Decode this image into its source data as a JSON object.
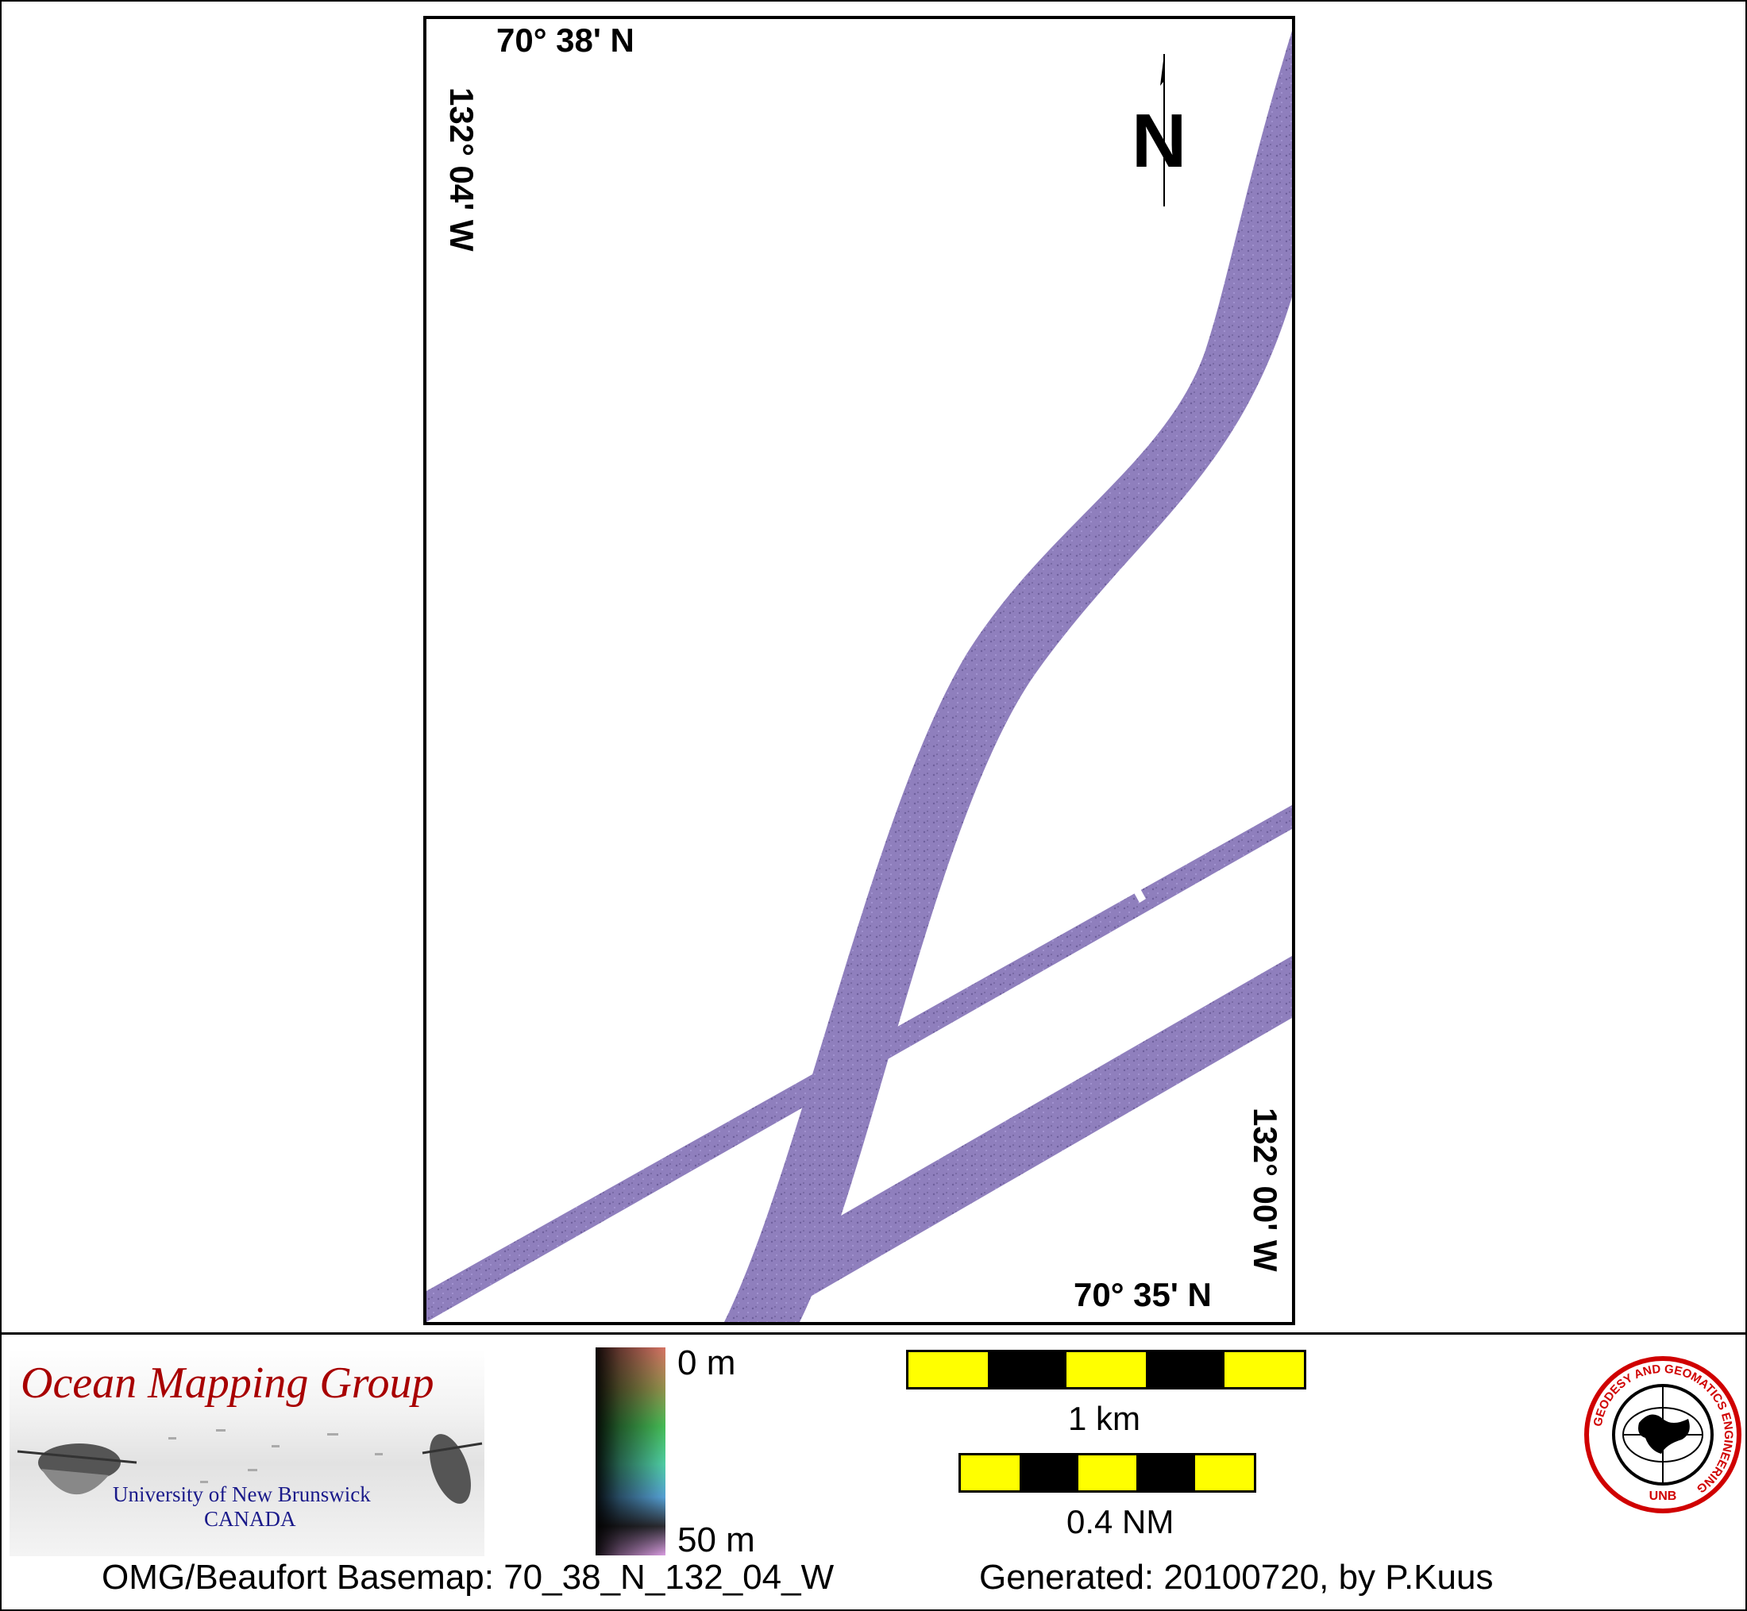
{
  "map": {
    "lat_top": "70° 38' N",
    "lat_bottom": "70° 35' N",
    "lon_left": "132° 04' W",
    "lon_right": "132° 00' W",
    "north_label": "N",
    "swath_color": "#8f7fbd"
  },
  "legend": {
    "colorbar_top": "0 m",
    "colorbar_bottom": "50 m",
    "scale_km_label": "1 km",
    "scale_nm_label": "0.4 NM",
    "scale_colors": [
      "#ffff00",
      "#000000"
    ]
  },
  "logos": {
    "omg_title": "Ocean Mapping Group",
    "omg_university": "University of New Brunswick",
    "omg_country": "CANADA",
    "unb_ring_text": "GEODESY AND GEOMATICS ENGINEERING",
    "unb_bottom_text": "UNB"
  },
  "footer": {
    "basemap": "OMG/Beaufort Basemap: 70_38_N_132_04_W",
    "generated": "Generated: 20100720, by P.Kuus"
  }
}
